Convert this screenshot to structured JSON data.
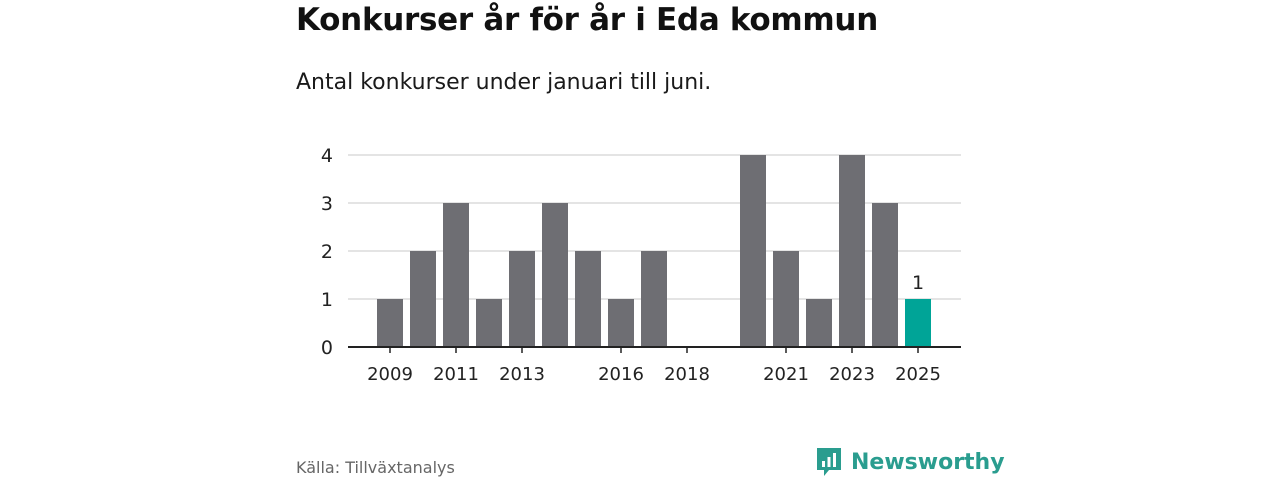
{
  "title": "Konkurser år för år i Eda kommun",
  "subtitle": "Antal konkurser under januari till juni.",
  "source": "Källa: Tillväxtanalys",
  "brand": {
    "name": "Newsworthy",
    "icon": "newsworthy-logo-icon"
  },
  "colors": {
    "bar": "#6e6e73",
    "highlight": "#00a497",
    "grid": "#dcdcdc",
    "axis": "#222222",
    "brand": "#2a9d8f"
  },
  "chart_data": {
    "type": "bar",
    "categories": [
      "2009",
      "2010",
      "2011",
      "2012",
      "2013",
      "2014",
      "2015",
      "2016",
      "2017",
      "2018",
      "2019",
      "2020",
      "2021",
      "2022",
      "2023",
      "2024",
      "2025"
    ],
    "values": [
      1,
      2,
      3,
      1,
      2,
      3,
      2,
      1,
      2,
      0,
      0,
      4,
      2,
      1,
      4,
      3,
      1
    ],
    "x_tick_labels": [
      "2009",
      "2011",
      "2013",
      "2016",
      "2018",
      "2021",
      "2023",
      "2025"
    ],
    "y_ticks": [
      0,
      1,
      2,
      3,
      4
    ],
    "ylim": [
      0,
      4
    ],
    "highlight_category": "2025",
    "data_labels": [
      {
        "category": "2025",
        "text": "1"
      }
    ],
    "xlabel": "",
    "ylabel": "",
    "grid": true,
    "legend": "none"
  }
}
